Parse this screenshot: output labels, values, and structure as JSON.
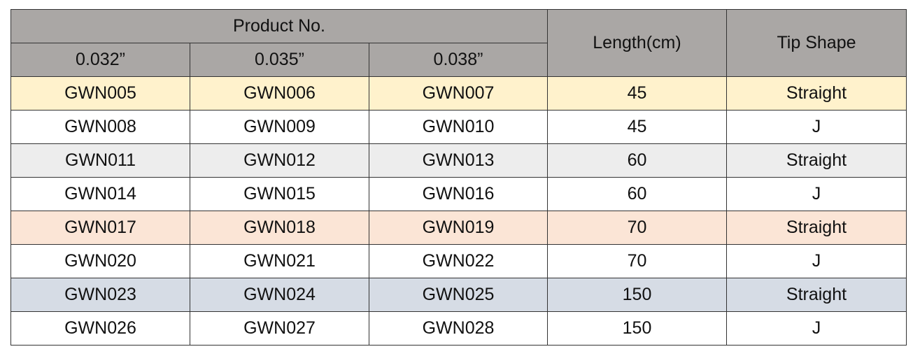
{
  "header": {
    "group": "Product No.",
    "subcolumns": [
      "0.032”",
      "0.035”",
      "0.038”"
    ],
    "length": "Length(cm)",
    "tip": "Tip Shape"
  },
  "table": {
    "rows": [
      [
        "GWN005",
        "GWN006",
        "GWN007",
        45,
        "Straight"
      ],
      [
        "GWN008",
        "GWN009",
        "GWN010",
        45,
        "J"
      ],
      [
        "GWN011",
        "GWN012",
        "GWN013",
        60,
        "Straight"
      ],
      [
        "GWN014",
        "GWN015",
        "GWN016",
        60,
        "J"
      ],
      [
        "GWN017",
        "GWN018",
        "GWN019",
        70,
        "Straight"
      ],
      [
        "GWN020",
        "GWN021",
        "GWN022",
        70,
        "J"
      ],
      [
        "GWN023",
        "GWN024",
        "GWN025",
        150,
        "Straight"
      ],
      [
        "GWN026",
        "GWN027",
        "GWN028",
        150,
        "J"
      ]
    ]
  }
}
